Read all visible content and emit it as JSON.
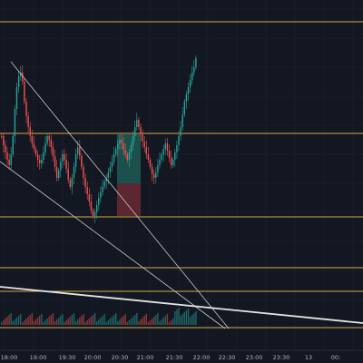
{
  "colors": {
    "background": "#131722",
    "grid": "#1f2330",
    "level_line": "#d6a943",
    "up": "#26a69a",
    "down": "#ef5350",
    "trendline": "#c8c8c8",
    "long_target": "#1f5a55",
    "long_stop": "#6a2a33",
    "axis_text": "#b2b5be"
  },
  "chart_data": {
    "type": "candlestick",
    "x_tick_labels": [
      "18:00",
      "19:00",
      "19:30",
      "20:00",
      "20:30",
      "21:00",
      "21:30",
      "22:00",
      "22:30",
      "23:00",
      "23:30",
      "13",
      "00:"
    ],
    "horizontal_levels_count": 6,
    "drawings": [
      "trendline",
      "trendline",
      "trendline",
      "long-position-box"
    ]
  }
}
